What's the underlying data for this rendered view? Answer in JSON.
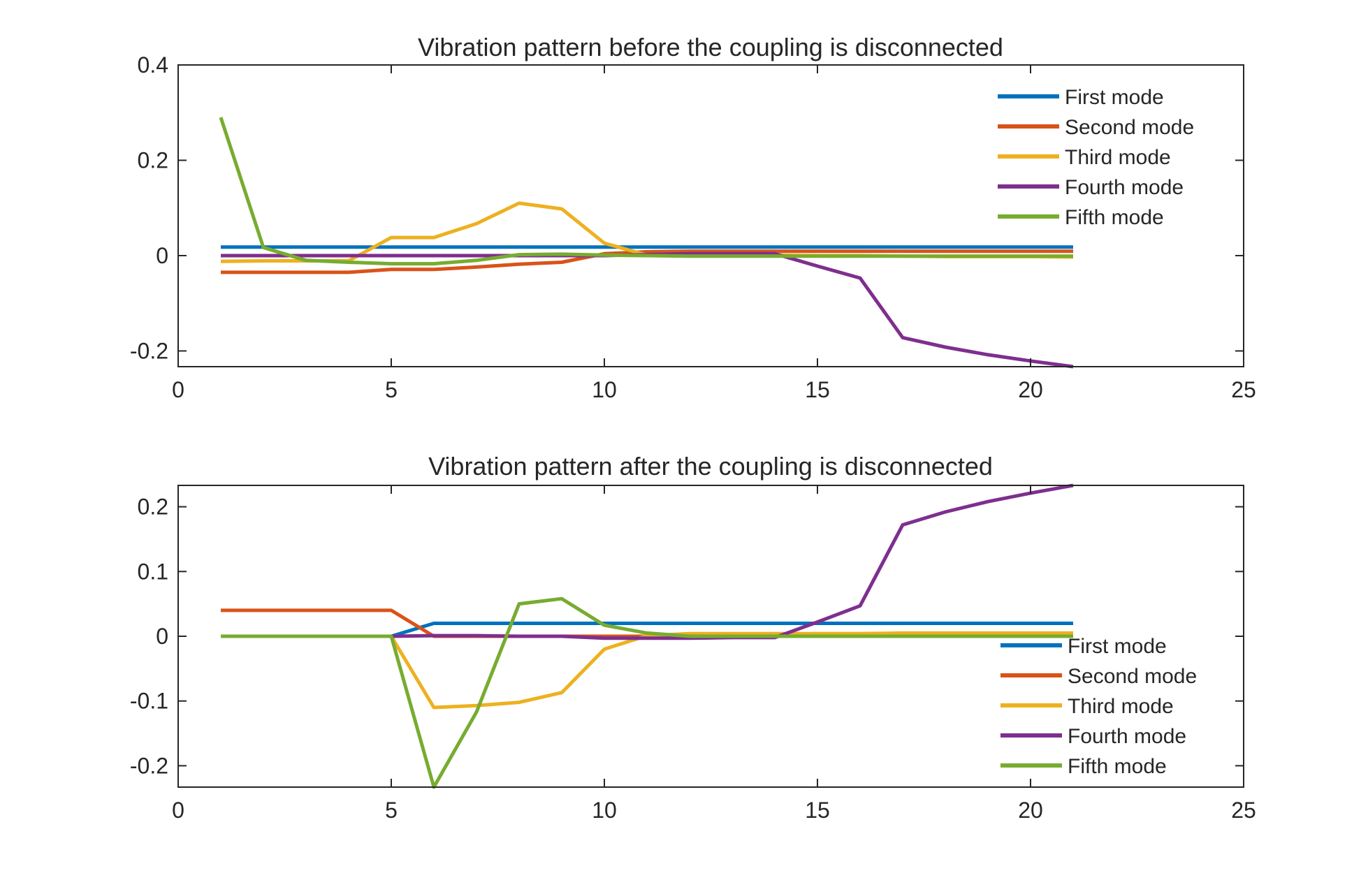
{
  "chart_data": [
    {
      "type": "line",
      "title": "Vibration pattern before the coupling is disconnected",
      "xlabel": "",
      "ylabel": "",
      "xlim": [
        0,
        25
      ],
      "ylim": [
        -0.233,
        0.4
      ],
      "xticks": [
        0,
        5,
        10,
        15,
        20,
        25
      ],
      "xtick_labels": [
        "0",
        "5",
        "10",
        "15",
        "20",
        "25"
      ],
      "yticks": [
        -0.2,
        0,
        0.2,
        0.4
      ],
      "ytick_labels": [
        "-0.2",
        "0",
        "0.2",
        "0.4"
      ],
      "grid": false,
      "legend_position": "top-right",
      "x": [
        1,
        2,
        3,
        4,
        5,
        6,
        7,
        8,
        9,
        10,
        11,
        12,
        13,
        14,
        15,
        16,
        17,
        18,
        19,
        20,
        21
      ],
      "series": [
        {
          "name": "First mode",
          "color": "#0072BD",
          "values": [
            0.018,
            0.018,
            0.018,
            0.018,
            0.018,
            0.018,
            0.018,
            0.018,
            0.018,
            0.018,
            0.018,
            0.018,
            0.018,
            0.018,
            0.018,
            0.018,
            0.018,
            0.018,
            0.018,
            0.018,
            0.018
          ]
        },
        {
          "name": "Second mode",
          "color": "#D95319",
          "values": [
            -0.035,
            -0.035,
            -0.035,
            -0.035,
            -0.029,
            -0.029,
            -0.024,
            -0.018,
            -0.014,
            0.004,
            0.008,
            0.009,
            0.009,
            0.009,
            0.009,
            0.009,
            0.009,
            0.009,
            0.009,
            0.009,
            0.009
          ]
        },
        {
          "name": "Third mode",
          "color": "#EDB120",
          "values": [
            -0.012,
            -0.011,
            -0.011,
            -0.011,
            0.038,
            0.038,
            0.067,
            0.11,
            0.098,
            0.026,
            0.001,
            0.001,
            0.001,
            0.001,
            0.0,
            0.0,
            -0.001,
            -0.002,
            -0.002,
            -0.002,
            -0.003
          ]
        },
        {
          "name": "Fourth mode",
          "color": "#7E2F8E",
          "values": [
            0.0,
            0.0,
            0.0,
            0.0,
            0.0,
            0.0,
            0.0,
            0.0,
            0.0,
            0.0,
            0.002,
            0.004,
            0.004,
            0.004,
            -0.022,
            -0.047,
            -0.172,
            -0.192,
            -0.208,
            -0.221,
            -0.233
          ]
        },
        {
          "name": "Fifth mode",
          "color": "#77AC30",
          "values": [
            0.29,
            0.017,
            -0.01,
            -0.014,
            -0.017,
            -0.017,
            -0.01,
            0.002,
            0.003,
            0.001,
            0.0,
            -0.001,
            -0.001,
            -0.001,
            -0.001,
            -0.001,
            -0.001,
            -0.001,
            -0.001,
            -0.001,
            -0.001
          ]
        }
      ]
    },
    {
      "type": "line",
      "title": "Vibration pattern after the coupling is disconnected",
      "xlabel": "",
      "ylabel": "",
      "xlim": [
        0,
        25
      ],
      "ylim": [
        -0.233,
        0.233
      ],
      "xticks": [
        0,
        5,
        10,
        15,
        20,
        25
      ],
      "xtick_labels": [
        "0",
        "5",
        "10",
        "15",
        "20",
        "25"
      ],
      "yticks": [
        -0.2,
        -0.1,
        0,
        0.1,
        0.2
      ],
      "ytick_labels": [
        "-0.2",
        "-0.1",
        "0",
        "0.1",
        "0.2"
      ],
      "grid": false,
      "legend_position": "bottom-right",
      "x": [
        1,
        2,
        3,
        4,
        5,
        6,
        7,
        8,
        9,
        10,
        11,
        12,
        13,
        14,
        15,
        16,
        17,
        18,
        19,
        20,
        21
      ],
      "series": [
        {
          "name": "First mode",
          "color": "#0072BD",
          "values": [
            0.0,
            0.0,
            0.0,
            0.0,
            0.0,
            0.02,
            0.02,
            0.02,
            0.02,
            0.02,
            0.02,
            0.02,
            0.02,
            0.02,
            0.02,
            0.02,
            0.02,
            0.02,
            0.02,
            0.02,
            0.02
          ]
        },
        {
          "name": "Second mode",
          "color": "#D95319",
          "values": [
            0.04,
            0.04,
            0.04,
            0.04,
            0.04,
            0.0,
            0.0,
            0.0,
            0.0,
            0.0,
            0.0,
            0.0,
            0.0,
            0.0,
            0.0,
            0.0,
            0.0,
            0.0,
            0.0,
            0.0,
            0.0
          ]
        },
        {
          "name": "Third mode",
          "color": "#EDB120",
          "values": [
            0.0,
            0.0,
            0.0,
            0.0,
            0.0,
            -0.11,
            -0.107,
            -0.102,
            -0.087,
            -0.02,
            0.001,
            0.004,
            0.004,
            0.004,
            0.004,
            0.004,
            0.005,
            0.005,
            0.005,
            0.005,
            0.005
          ]
        },
        {
          "name": "Fourth mode",
          "color": "#7E2F8E",
          "values": [
            0.0,
            0.0,
            0.0,
            0.0,
            0.0,
            0.001,
            0.001,
            0.0,
            0.0,
            -0.003,
            -0.003,
            -0.003,
            -0.002,
            -0.002,
            0.022,
            0.047,
            0.172,
            0.192,
            0.208,
            0.221,
            0.233
          ]
        },
        {
          "name": "Fifth mode",
          "color": "#77AC30",
          "values": [
            0.0,
            0.0,
            0.0,
            0.0,
            0.0,
            -0.233,
            -0.117,
            0.05,
            0.058,
            0.017,
            0.005,
            0.0,
            0.0,
            0.0,
            0.0,
            0.0,
            0.0,
            0.0,
            0.0,
            0.0,
            0.0
          ]
        }
      ]
    }
  ]
}
